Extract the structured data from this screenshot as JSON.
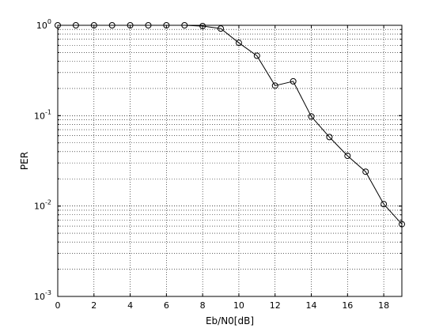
{
  "chart_data": {
    "type": "line",
    "title": "",
    "xlabel": "Eb/N0[dB]",
    "ylabel": "PER",
    "xscale": "linear",
    "yscale": "log",
    "xlim": [
      0,
      19
    ],
    "ylim": [
      0.001,
      1
    ],
    "grid": true,
    "x_ticks": [
      "0",
      "2",
      "4",
      "6",
      "8",
      "10",
      "12",
      "14",
      "16",
      "18"
    ],
    "y_ticks": [
      {
        "base": "10",
        "exp": "-3"
      },
      {
        "base": "10",
        "exp": "-2"
      },
      {
        "base": "10",
        "exp": "-1"
      },
      {
        "base": "10",
        "exp": "0"
      }
    ],
    "marker": "circle",
    "line_color": "#000000",
    "x": [
      0,
      1,
      2,
      3,
      4,
      5,
      6,
      7,
      8,
      9,
      10,
      11,
      12,
      13,
      14,
      15,
      16,
      17,
      18,
      19
    ],
    "values": [
      1.0,
      1.0,
      1.0,
      1.0,
      1.0,
      1.0,
      1.0,
      1.0,
      0.98,
      0.92,
      0.64,
      0.46,
      0.215,
      0.24,
      0.098,
      0.058,
      0.036,
      0.024,
      0.0105,
      0.0063
    ]
  }
}
